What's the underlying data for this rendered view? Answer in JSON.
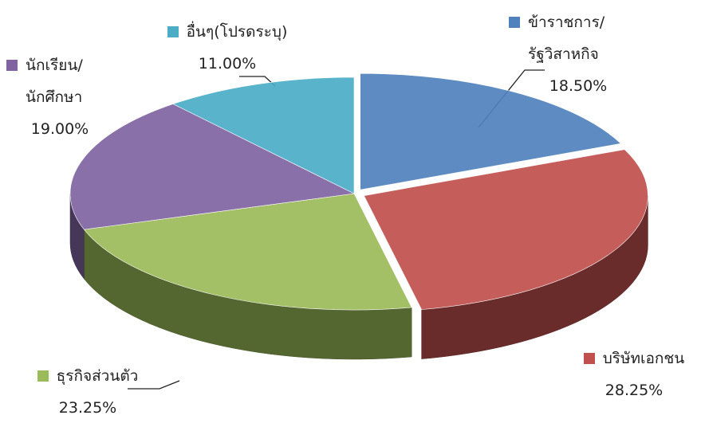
{
  "chart_data": {
    "type": "pie3d",
    "categories": [
      "ข้าราชการ/รัฐวิสาหกิจ",
      "บริษัทเอกชน",
      "ธุรกิจส่วนตัว",
      "นักเรียน/นักศึกษา",
      "อื่นๆ(โปรดระบุ)"
    ],
    "values": [
      18.5,
      28.25,
      23.25,
      19.0,
      11.0
    ],
    "value_labels": [
      "18.50%",
      "28.25%",
      "23.25%",
      "19.00%",
      "11.00%"
    ],
    "colors": [
      "#4f81bd",
      "#c0504d",
      "#9bbb59",
      "#8064a2",
      "#4bacc6"
    ]
  }
}
